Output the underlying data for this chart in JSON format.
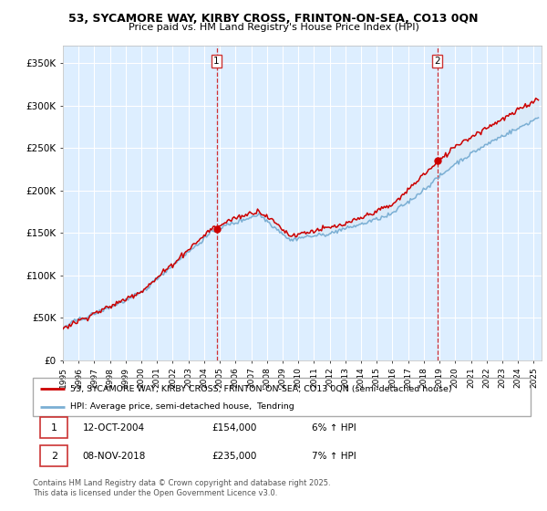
{
  "title1": "53, SYCAMORE WAY, KIRBY CROSS, FRINTON-ON-SEA, CO13 0QN",
  "title2": "Price paid vs. HM Land Registry's House Price Index (HPI)",
  "xlim_start": 1995.0,
  "xlim_end": 2025.5,
  "ylim_min": 0,
  "ylim_max": 370000,
  "yticks": [
    0,
    50000,
    100000,
    150000,
    200000,
    250000,
    300000,
    350000
  ],
  "ytick_labels": [
    "£0",
    "£50K",
    "£100K",
    "£150K",
    "£200K",
    "£250K",
    "£300K",
    "£350K"
  ],
  "sale1_x": 2004.79,
  "sale1_y": 154000,
  "sale2_x": 2018.86,
  "sale2_y": 235000,
  "red_color": "#cc0000",
  "blue_color": "#7bafd4",
  "blue_fill": "#d6e8f5",
  "legend1": "53, SYCAMORE WAY, KIRBY CROSS, FRINTON-ON-SEA, CO13 0QN (semi-detached house)",
  "legend2": "HPI: Average price, semi-detached house,  Tendring",
  "annotation1_date": "12-OCT-2004",
  "annotation1_price": "£154,000",
  "annotation1_hpi": "6% ↑ HPI",
  "annotation2_date": "08-NOV-2018",
  "annotation2_price": "£235,000",
  "annotation2_hpi": "7% ↑ HPI",
  "footer": "Contains HM Land Registry data © Crown copyright and database right 2025.\nThis data is licensed under the Open Government Licence v3.0.",
  "plot_bg_color": "#ddeeff",
  "fig_bg_color": "#ffffff"
}
